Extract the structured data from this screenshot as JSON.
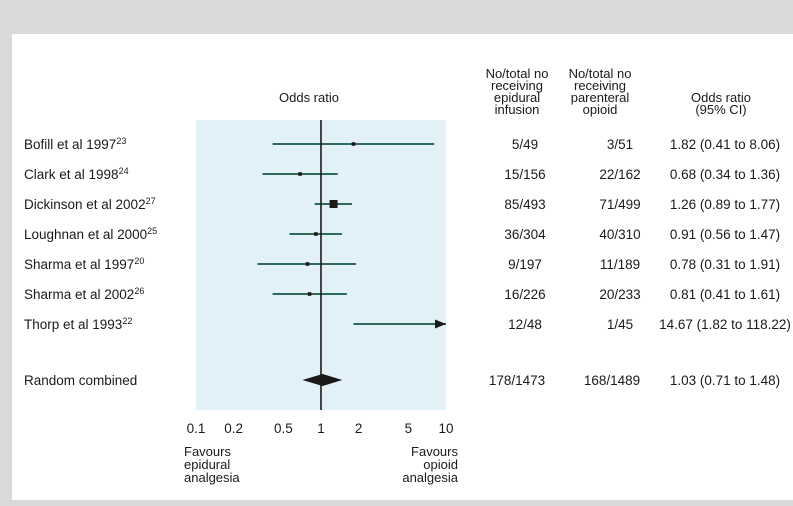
{
  "chart_data": {
    "type": "forest",
    "title": "Odds ratio",
    "x_scale": "log",
    "xlim": [
      0.1,
      10
    ],
    "xticks": [
      "0.1",
      "0.2",
      "0.5",
      "1",
      "2",
      "5",
      "10"
    ],
    "reference_line": 1,
    "column_headers": {
      "epidural": [
        "No/total no",
        "receiving",
        "epidural",
        "infusion"
      ],
      "opioid": [
        "No/total no",
        "receiving",
        "parenteral",
        "opioid"
      ],
      "ci": [
        "Odds ratio",
        "(95% CI)"
      ]
    },
    "studies": [
      {
        "name": "Bofill et al 1997",
        "ref": "23",
        "epidural": "5/49",
        "opioid": "3/51",
        "ci_text": "1.82 (0.41 to 8.06)",
        "or": 1.82,
        "low": 0.41,
        "high": 8.06
      },
      {
        "name": "Clark et al 1998",
        "ref": "24",
        "epidural": "15/156",
        "opioid": "22/162",
        "ci_text": "0.68 (0.34 to 1.36)",
        "or": 0.68,
        "low": 0.34,
        "high": 1.36
      },
      {
        "name": "Dickinson et al 2002",
        "ref": "27",
        "epidural": "85/493",
        "opioid": "71/499",
        "ci_text": "1.26 (0.89 to 1.77)",
        "or": 1.26,
        "low": 0.89,
        "high": 1.77
      },
      {
        "name": "Loughnan et al 2000",
        "ref": "25",
        "epidural": "36/304",
        "opioid": "40/310",
        "ci_text": "0.91 (0.56 to 1.47)",
        "or": 0.91,
        "low": 0.56,
        "high": 1.47
      },
      {
        "name": "Sharma et al 1997",
        "ref": "20",
        "epidural": "9/197",
        "opioid": "11/189",
        "ci_text": "0.78 (0.31 to 1.91)",
        "or": 0.78,
        "low": 0.31,
        "high": 1.91
      },
      {
        "name": "Sharma et al 2002",
        "ref": "26",
        "epidural": "16/226",
        "opioid": "20/233",
        "ci_text": "0.81 (0.41 to 1.61)",
        "or": 0.81,
        "low": 0.41,
        "high": 1.61
      },
      {
        "name": "Thorp et al 1993",
        "ref": "22",
        "epidural": "12/48",
        "opioid": "1/45",
        "ci_text": "14.67 (1.82 to 118.22)",
        "or": 14.67,
        "low": 1.82,
        "high": 118.22
      }
    ],
    "combined": {
      "name": "Random combined",
      "epidural": "178/1473",
      "opioid": "168/1489",
      "ci_text": "1.03 (0.71 to 1.48)",
      "or": 1.03,
      "low": 0.71,
      "high": 1.48
    },
    "favours_left": [
      "Favours",
      "epidural",
      "analgesia"
    ],
    "favours_right": [
      "Favours",
      "opioid",
      "analgesia"
    ],
    "colors": {
      "plot_background": "#e2f0f8",
      "line": "#2f6b5c",
      "ref_line": "#1a1a1a",
      "text": "#1a1a1a"
    }
  }
}
